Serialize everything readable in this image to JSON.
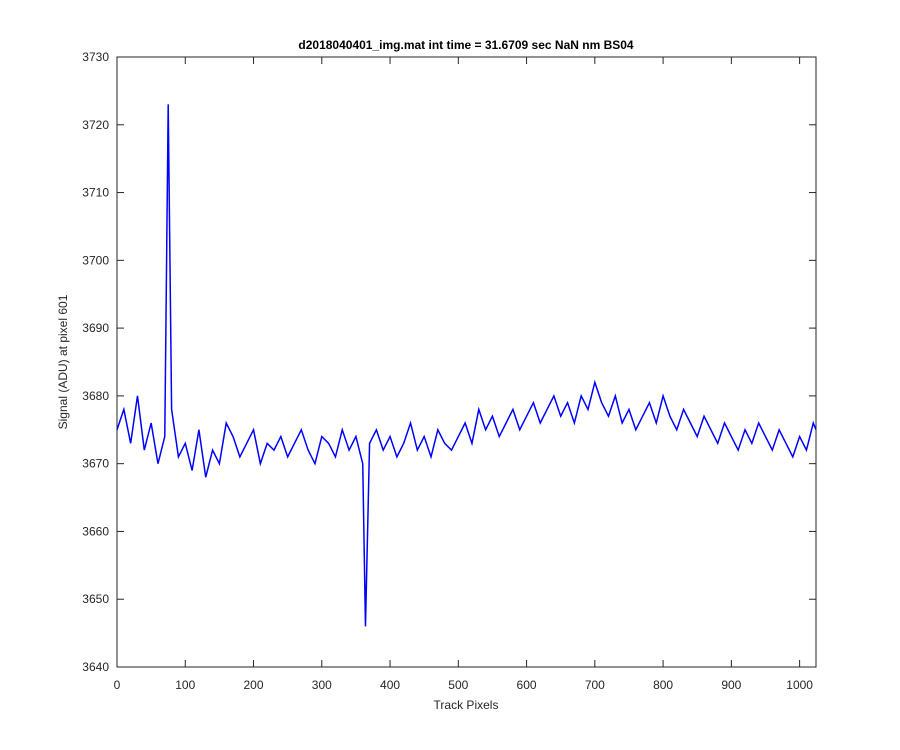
{
  "chart_data": {
    "type": "line",
    "title": "d2018040401_img.mat int time = 31.6709 sec  NaN nm BS04",
    "xlabel": "Track Pixels",
    "ylabel": "Signal (ADU) at pixel 601",
    "xlim": [
      0,
      1024
    ],
    "ylim": [
      3640,
      3730
    ],
    "xticks": [
      0,
      100,
      200,
      300,
      400,
      500,
      600,
      700,
      800,
      900,
      1000
    ],
    "yticks": [
      3640,
      3650,
      3660,
      3670,
      3680,
      3690,
      3700,
      3710,
      3720,
      3730
    ],
    "grid": false,
    "line_color": "#0000ff",
    "series": [
      {
        "x": [
          0,
          10,
          20,
          30,
          40,
          50,
          60,
          70,
          75,
          80,
          90,
          100,
          110,
          120,
          130,
          140,
          150,
          160,
          170,
          180,
          190,
          200,
          210,
          220,
          230,
          240,
          250,
          260,
          270,
          280,
          290,
          300,
          310,
          320,
          330,
          340,
          350,
          360,
          364,
          370,
          380,
          390,
          400,
          410,
          420,
          430,
          440,
          450,
          460,
          470,
          480,
          490,
          500,
          510,
          520,
          530,
          540,
          550,
          560,
          570,
          580,
          590,
          600,
          610,
          620,
          630,
          640,
          650,
          660,
          670,
          680,
          690,
          700,
          710,
          720,
          730,
          740,
          750,
          760,
          770,
          780,
          790,
          800,
          810,
          820,
          830,
          840,
          850,
          860,
          870,
          880,
          890,
          900,
          910,
          920,
          930,
          940,
          950,
          960,
          970,
          980,
          990,
          1000,
          1010,
          1020,
          1024
        ],
        "y": [
          3675,
          3678,
          3673,
          3680,
          3672,
          3676,
          3670,
          3674,
          3723,
          3678,
          3671,
          3673,
          3669,
          3675,
          3668,
          3672,
          3670,
          3676,
          3674,
          3671,
          3673,
          3675,
          3670,
          3673,
          3672,
          3674,
          3671,
          3673,
          3675,
          3672,
          3670,
          3674,
          3673,
          3671,
          3675,
          3672,
          3674,
          3670,
          3646,
          3673,
          3675,
          3672,
          3674,
          3671,
          3673,
          3676,
          3672,
          3674,
          3671,
          3675,
          3673,
          3672,
          3674,
          3676,
          3673,
          3678,
          3675,
          3677,
          3674,
          3676,
          3678,
          3675,
          3677,
          3679,
          3676,
          3678,
          3680,
          3677,
          3679,
          3676,
          3680,
          3678,
          3682,
          3679,
          3677,
          3680,
          3676,
          3678,
          3675,
          3677,
          3679,
          3676,
          3680,
          3677,
          3675,
          3678,
          3676,
          3674,
          3677,
          3675,
          3673,
          3676,
          3674,
          3672,
          3675,
          3673,
          3676,
          3674,
          3672,
          3675,
          3673,
          3671,
          3674,
          3672,
          3676,
          3675
        ]
      }
    ]
  }
}
